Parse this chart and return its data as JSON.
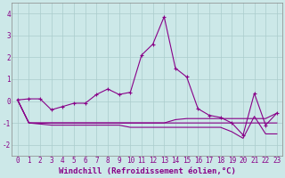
{
  "x": [
    0,
    1,
    2,
    3,
    4,
    5,
    6,
    7,
    8,
    9,
    10,
    11,
    12,
    13,
    14,
    15,
    16,
    17,
    18,
    19,
    20,
    21,
    22,
    23
  ],
  "y_main": [
    0.05,
    0.1,
    0.1,
    -0.4,
    -0.25,
    -0.1,
    -0.1,
    0.3,
    0.55,
    0.3,
    0.4,
    2.1,
    2.6,
    3.85,
    1.5,
    1.1,
    -0.35,
    -0.65,
    -0.75,
    -1.0,
    -1.55,
    0.35,
    -1.1,
    -0.55
  ],
  "y_flat1": [
    0.05,
    -1.0,
    -1.0,
    -1.0,
    -1.0,
    -1.0,
    -1.0,
    -1.0,
    -1.0,
    -1.0,
    -1.0,
    -1.0,
    -1.0,
    -1.0,
    -0.85,
    -0.8,
    -0.8,
    -0.8,
    -0.8,
    -0.8,
    -0.8,
    -0.8,
    -0.8,
    -0.55
  ],
  "y_flat2": [
    0.05,
    -1.0,
    -1.0,
    -1.0,
    -1.0,
    -1.0,
    -1.0,
    -1.0,
    -1.0,
    -1.0,
    -1.0,
    -1.0,
    -1.0,
    -1.0,
    -1.0,
    -1.0,
    -1.0,
    -1.0,
    -1.0,
    -1.0,
    -1.0,
    -1.0,
    -1.0,
    -1.0
  ],
  "y_flat3": [
    0.05,
    -1.0,
    -1.05,
    -1.1,
    -1.1,
    -1.1,
    -1.1,
    -1.1,
    -1.1,
    -1.1,
    -1.2,
    -1.2,
    -1.2,
    -1.2,
    -1.2,
    -1.2,
    -1.2,
    -1.2,
    -1.2,
    -1.4,
    -1.7,
    -0.7,
    -1.5,
    -1.5
  ],
  "line_color": "#880088",
  "bg_color": "#cce8e8",
  "grid_color": "#aacccc",
  "xlabel": "Windchill (Refroidissement éolien,°C)",
  "xlabel_fontsize": 6.5,
  "tick_fontsize": 5.5,
  "ylim": [
    -2.5,
    4.5
  ],
  "xlim": [
    -0.5,
    23.5
  ],
  "yticks": [
    -2,
    -1,
    0,
    1,
    2,
    3,
    4
  ],
  "xticks": [
    0,
    1,
    2,
    3,
    4,
    5,
    6,
    7,
    8,
    9,
    10,
    11,
    12,
    13,
    14,
    15,
    16,
    17,
    18,
    19,
    20,
    21,
    22,
    23
  ]
}
